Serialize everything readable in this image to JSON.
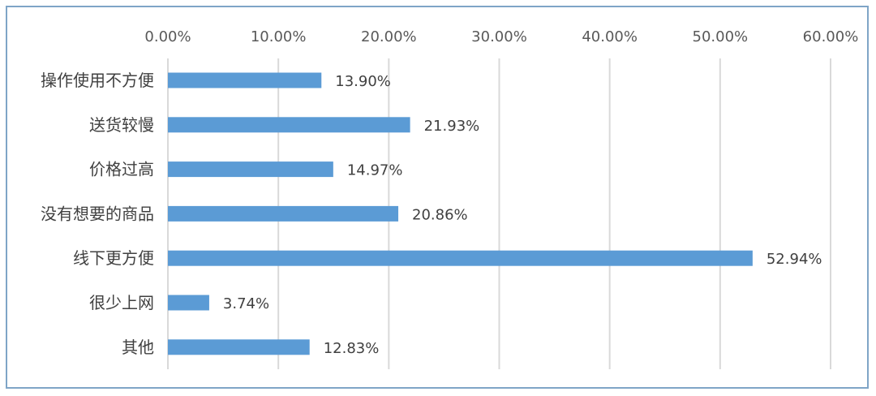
{
  "chart_data": {
    "type": "bar",
    "orientation": "horizontal",
    "categories": [
      "操作使用不方便",
      "送货较慢",
      "价格过高",
      "没有想要的商品",
      "线下更方便",
      "很少上网",
      "其他"
    ],
    "values": [
      13.9,
      21.93,
      14.97,
      20.86,
      52.94,
      3.74,
      12.83
    ],
    "data_labels": [
      "13.90%",
      "21.93%",
      "14.97%",
      "20.86%",
      "52.94%",
      "3.74%",
      "12.83%"
    ],
    "x_ticks": [
      "0.00%",
      "10.00%",
      "20.00%",
      "30.00%",
      "40.00%",
      "50.00%",
      "60.00%"
    ],
    "xlim": [
      0,
      60
    ],
    "x_axis_position": "top",
    "grid": true,
    "bar_color": "#5b9bd5",
    "title": "",
    "xlabel": "",
    "ylabel": ""
  }
}
